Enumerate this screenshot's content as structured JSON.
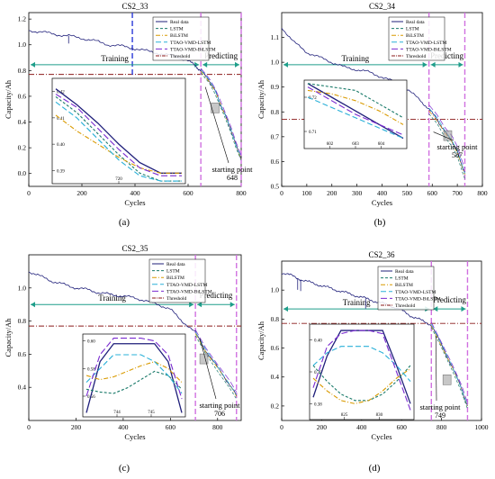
{
  "legend_labels": [
    "Real data",
    "LSTM",
    "BiLSTM",
    "TTAO-VMD-LSTM",
    "TTAO-VMD-BiLSTM",
    "Threshold"
  ],
  "series_colors": {
    "Real data": "#1f1f7a",
    "LSTM": "#1a7a6a",
    "BiLSTM": "#d99a00",
    "TTAO-VMD-LSTM": "#2ab0d8",
    "TTAO-VMD-BiLSTM": "#7a2ad0",
    "Threshold": "#8b1a1a"
  },
  "region_colors": {
    "training": "#1e9e8a",
    "predicting": "#d070e0",
    "blue_dash": "#2a3ad8"
  },
  "chart_data": [
    {
      "type": "line",
      "panel": "(a)",
      "title": "CS2_33",
      "xlabel": "Cycles",
      "ylabel": "Capacity/Ah",
      "xlim": [
        0,
        800
      ],
      "ylim": [
        -0.1,
        1.25
      ],
      "xticks": [
        "0",
        "200",
        "400",
        "600",
        "800"
      ],
      "yticks": [
        "0.0",
        "0.2",
        "0.4",
        "0.6",
        "0.8",
        "1.0",
        "1.2"
      ],
      "threshold": 0.77,
      "start_point": 648,
      "training_label": "Training",
      "predicting_label": "Predicting",
      "starting_point_label": "starting point",
      "real_data": [
        [
          0,
          1.11
        ],
        [
          50,
          1.1
        ],
        [
          100,
          1.08
        ],
        [
          150,
          1.07
        ],
        [
          200,
          1.05
        ],
        [
          250,
          1.03
        ],
        [
          300,
          1.0
        ],
        [
          350,
          0.99
        ],
        [
          400,
          0.97
        ],
        [
          450,
          0.95
        ],
        [
          500,
          0.93
        ],
        [
          550,
          0.91
        ],
        [
          600,
          0.88
        ],
        [
          630,
          0.83
        ],
        [
          648,
          0.8
        ],
        [
          680,
          0.72
        ],
        [
          700,
          0.65
        ],
        [
          720,
          0.55
        ],
        [
          740,
          0.45
        ],
        [
          760,
          0.35
        ],
        [
          780,
          0.22
        ],
        [
          800,
          0.12
        ]
      ],
      "inset": {
        "xticks": [
          "720"
        ],
        "yticks": [
          "0.39",
          "0.40",
          "0.41",
          "0.42"
        ],
        "ylim": [
          0.385,
          0.425
        ],
        "series": [
          {
            "name": "Real data",
            "values": [
              0.421,
              0.415,
              0.408,
              0.4,
              0.393,
              0.389,
              0.389
            ]
          },
          {
            "name": "LSTM",
            "values": [
              0.418,
              0.412,
              0.404,
              0.396,
              0.389,
              0.386,
              0.386
            ]
          },
          {
            "name": "BiLSTM",
            "values": [
              0.411,
              0.405,
              0.4,
              0.395,
              0.391,
              0.389,
              0.389
            ]
          },
          {
            "name": "TTAO-VMD-LSTM",
            "values": [
              0.416,
              0.41,
              0.402,
              0.394,
              0.388,
              0.386,
              0.386
            ]
          },
          {
            "name": "TTAO-VMD-BiLSTM",
            "values": [
              0.419,
              0.414,
              0.406,
              0.398,
              0.391,
              0.388,
              0.388
            ]
          }
        ]
      }
    },
    {
      "type": "line",
      "panel": "(b)",
      "title": "CS2_34",
      "xlabel": "Cycles",
      "ylabel": "Capacity/Ah",
      "xlim": [
        0,
        800
      ],
      "ylim": [
        0.5,
        1.2
      ],
      "xticks": [
        "0",
        "100",
        "200",
        "300",
        "400",
        "500",
        "600",
        "700",
        "800"
      ],
      "yticks": [
        "0.5",
        "0.6",
        "0.7",
        "0.8",
        "0.9",
        "1.0",
        "1.1"
      ],
      "threshold": 0.77,
      "start_point": 587,
      "training_label": "Training",
      "predicting_label": "Predicting",
      "starting_point_label": "starting point",
      "real_data": [
        [
          0,
          1.14
        ],
        [
          50,
          1.08
        ],
        [
          100,
          1.04
        ],
        [
          150,
          1.02
        ],
        [
          200,
          1.0
        ],
        [
          250,
          0.98
        ],
        [
          300,
          0.97
        ],
        [
          350,
          0.96
        ],
        [
          400,
          0.94
        ],
        [
          450,
          0.92
        ],
        [
          500,
          0.89
        ],
        [
          550,
          0.85
        ],
        [
          587,
          0.81
        ],
        [
          620,
          0.77
        ],
        [
          650,
          0.72
        ],
        [
          680,
          0.68
        ],
        [
          700,
          0.64
        ],
        [
          720,
          0.58
        ],
        [
          730,
          0.55
        ]
      ],
      "inset": {
        "xticks": [
          "602",
          "603",
          "604"
        ],
        "yticks": [
          "0.71",
          "0.72"
        ],
        "ylim": [
          0.705,
          0.725
        ],
        "series": [
          {
            "name": "Real data",
            "values": [
              0.724,
              0.72,
              0.716,
              0.712,
              0.708
            ]
          },
          {
            "name": "LSTM",
            "values": [
              0.724,
              0.723,
              0.722,
              0.718,
              0.714
            ]
          },
          {
            "name": "BiLSTM",
            "values": [
              0.722,
              0.721,
              0.719,
              0.716,
              0.712
            ]
          },
          {
            "name": "TTAO-VMD-LSTM",
            "values": [
              0.72,
              0.717,
              0.714,
              0.711,
              0.708
            ]
          },
          {
            "name": "TTAO-VMD-BiLSTM",
            "values": [
              0.723,
              0.719,
              0.715,
              0.712,
              0.709
            ]
          }
        ]
      }
    },
    {
      "type": "line",
      "panel": "(c)",
      "title": "CS2_35",
      "xlabel": "Cycles",
      "ylabel": "Capacity/Ah",
      "xlim": [
        0,
        900
      ],
      "ylim": [
        0.2,
        1.2
      ],
      "xticks": [
        "0",
        "200",
        "400",
        "600",
        "800"
      ],
      "yticks": [
        "0.4",
        "0.6",
        "0.8",
        "1.0"
      ],
      "threshold": 0.77,
      "start_point": 706,
      "training_label": "Training",
      "predicting_label": "Predicting",
      "starting_point_label": "starting point",
      "real_data": [
        [
          0,
          1.1
        ],
        [
          50,
          1.07
        ],
        [
          100,
          1.04
        ],
        [
          150,
          1.02
        ],
        [
          200,
          1.0
        ],
        [
          250,
          0.99
        ],
        [
          300,
          0.97
        ],
        [
          350,
          0.96
        ],
        [
          400,
          0.95
        ],
        [
          450,
          0.94
        ],
        [
          500,
          0.92
        ],
        [
          550,
          0.9
        ],
        [
          600,
          0.87
        ],
        [
          650,
          0.8
        ],
        [
          706,
          0.73
        ],
        [
          750,
          0.62
        ],
        [
          800,
          0.52
        ],
        [
          850,
          0.42
        ],
        [
          880,
          0.35
        ]
      ],
      "inset": {
        "xticks": [
          "744",
          "745"
        ],
        "yticks": [
          "0.56",
          "0.58",
          "0.60"
        ],
        "ylim": [
          0.545,
          0.605
        ],
        "series": [
          {
            "name": "Real data",
            "values": [
              0.548,
              0.585,
              0.598,
              0.598,
              0.598,
              0.598,
              0.585,
              0.548
            ]
          },
          {
            "name": "LSTM",
            "values": [
              0.565,
              0.563,
              0.562,
              0.566,
              0.572,
              0.578,
              0.575,
              0.565
            ]
          },
          {
            "name": "BiLSTM",
            "values": [
              0.575,
              0.572,
              0.574,
              0.578,
              0.582,
              0.585,
              0.58,
              0.57
            ]
          },
          {
            "name": "TTAO-VMD-LSTM",
            "values": [
              0.57,
              0.58,
              0.59,
              0.59,
              0.59,
              0.585,
              0.575,
              0.562
            ]
          },
          {
            "name": "TTAO-VMD-BiLSTM",
            "values": [
              0.56,
              0.59,
              0.602,
              0.602,
              0.602,
              0.6,
              0.59,
              0.558
            ]
          }
        ]
      }
    },
    {
      "type": "line",
      "panel": "(d)",
      "title": "CS2_36",
      "xlabel": "Cycles",
      "ylabel": "Capacity/Ah",
      "xlim": [
        0,
        1000
      ],
      "ylim": [
        0.1,
        1.2
      ],
      "xticks": [
        "0",
        "200",
        "400",
        "600",
        "800",
        "1000"
      ],
      "yticks": [
        "0.2",
        "0.4",
        "0.6",
        "0.8",
        "1.0"
      ],
      "threshold": 0.77,
      "start_point": 749,
      "training_label": "Training",
      "predicting_label": "Predicting",
      "starting_point_label": "starting point",
      "real_data": [
        [
          0,
          1.12
        ],
        [
          50,
          1.1
        ],
        [
          100,
          1.07
        ],
        [
          150,
          1.05
        ],
        [
          200,
          1.03
        ],
        [
          250,
          1.01
        ],
        [
          300,
          0.99
        ],
        [
          350,
          0.97
        ],
        [
          400,
          0.95
        ],
        [
          450,
          0.93
        ],
        [
          500,
          0.91
        ],
        [
          550,
          0.89
        ],
        [
          600,
          0.86
        ],
        [
          650,
          0.82
        ],
        [
          700,
          0.79
        ],
        [
          749,
          0.76
        ],
        [
          800,
          0.62
        ],
        [
          850,
          0.48
        ],
        [
          900,
          0.32
        ],
        [
          930,
          0.2
        ]
      ],
      "inset": {
        "xticks": [
          "825",
          "830"
        ],
        "yticks": [
          "0.38",
          "0.39",
          "0.40"
        ],
        "ylim": [
          0.375,
          0.405
        ],
        "series": [
          {
            "name": "Real data",
            "values": [
              0.382,
              0.395,
              0.403,
              0.403,
              0.403,
              0.403,
              0.392,
              0.38
            ]
          },
          {
            "name": "LSTM",
            "values": [
              0.392,
              0.387,
              0.383,
              0.381,
              0.381,
              0.383,
              0.387,
              0.392
            ]
          },
          {
            "name": "BiLSTM",
            "values": [
              0.388,
              0.384,
              0.381,
              0.38,
              0.381,
              0.384,
              0.388,
              0.391
            ]
          },
          {
            "name": "TTAO-VMD-LSTM",
            "values": [
              0.392,
              0.396,
              0.398,
              0.398,
              0.398,
              0.396,
              0.392,
              0.387
            ]
          },
          {
            "name": "TTAO-VMD-BiLSTM",
            "values": [
              0.385,
              0.398,
              0.402,
              0.403,
              0.403,
              0.402,
              0.39,
              0.378
            ]
          }
        ]
      }
    }
  ]
}
